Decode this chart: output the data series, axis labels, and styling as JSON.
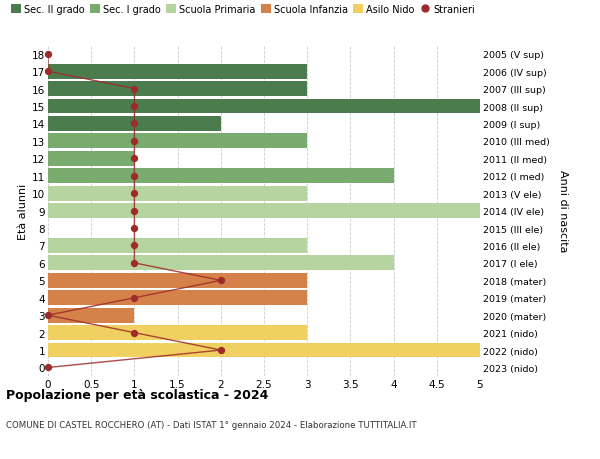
{
  "ages": [
    18,
    17,
    16,
    15,
    14,
    13,
    12,
    11,
    10,
    9,
    8,
    7,
    6,
    5,
    4,
    3,
    2,
    1,
    0
  ],
  "years": [
    "2005 (V sup)",
    "2006 (IV sup)",
    "2007 (III sup)",
    "2008 (II sup)",
    "2009 (I sup)",
    "2010 (III med)",
    "2011 (II med)",
    "2012 (I med)",
    "2013 (V ele)",
    "2014 (IV ele)",
    "2015 (III ele)",
    "2016 (II ele)",
    "2017 (I ele)",
    "2018 (mater)",
    "2019 (mater)",
    "2020 (mater)",
    "2021 (nido)",
    "2022 (nido)",
    "2023 (nido)"
  ],
  "bar_values": [
    0,
    3,
    3,
    5,
    2,
    3,
    1,
    4,
    3,
    5,
    0,
    3,
    4,
    3,
    3,
    1,
    3,
    5,
    0
  ],
  "bar_colors": [
    "#4a7c4e",
    "#4a7c4e",
    "#4a7c4e",
    "#4a7c4e",
    "#4a7c4e",
    "#7aab6e",
    "#7aab6e",
    "#7aab6e",
    "#b5d4a0",
    "#b5d4a0",
    "#b5d4a0",
    "#b5d4a0",
    "#b5d4a0",
    "#d4824a",
    "#d4824a",
    "#d4824a",
    "#f0d060",
    "#f0d060",
    "#f0d060"
  ],
  "stranieri_values": [
    0,
    0,
    1,
    1,
    1,
    1,
    1,
    1,
    1,
    1,
    1,
    1,
    1,
    2,
    1,
    0,
    1,
    2,
    0
  ],
  "stranieri_color": "#9e2a2a",
  "title": "Popolazione per età scolastica - 2024",
  "subtitle": "COMUNE DI CASTEL ROCCHERO (AT) - Dati ISTAT 1° gennaio 2024 - Elaborazione TUTTITALIA.IT",
  "ylabel_left": "Età alunni",
  "ylabel_right": "Anni di nascita",
  "xlim": [
    0,
    5.0
  ],
  "xticks": [
    0,
    0.5,
    1.0,
    1.5,
    2.0,
    2.5,
    3.0,
    3.5,
    4.0,
    4.5,
    5.0
  ],
  "legend_labels": [
    "Sec. II grado",
    "Sec. I grado",
    "Scuola Primaria",
    "Scuola Infanzia",
    "Asilo Nido",
    "Stranieri"
  ],
  "legend_colors": [
    "#4a7c4e",
    "#7aab6e",
    "#b5d4a0",
    "#d4824a",
    "#f0d060",
    "#9e2a2a"
  ],
  "bar_height": 0.85,
  "bg_color": "#ffffff",
  "grid_color": "#cccccc"
}
